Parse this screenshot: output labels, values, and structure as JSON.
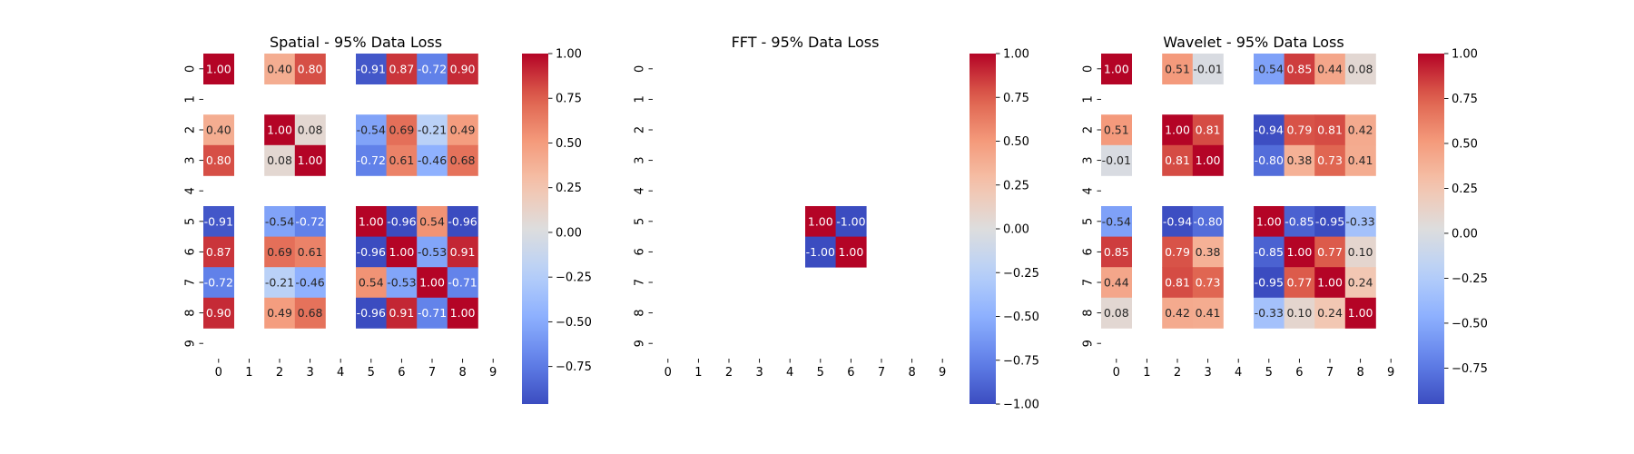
{
  "figure": {
    "background": "#ffffff"
  },
  "chart_data": [
    {
      "type": "heatmap",
      "title": "Spatial - 95% Data Loss",
      "xlabel": "",
      "ylabel": "",
      "x_ticks": [
        "0",
        "1",
        "2",
        "3",
        "4",
        "5",
        "6",
        "7",
        "8",
        "9"
      ],
      "y_ticks": [
        "0",
        "1",
        "2",
        "3",
        "4",
        "5",
        "6",
        "7",
        "8",
        "9"
      ],
      "colormap": "coolwarm",
      "vmin": -0.96,
      "vmax": 1.0,
      "colorbar_ticks": [
        "1.00",
        "0.75",
        "0.50",
        "0.25",
        "0.00",
        "−0.25",
        "−0.50",
        "−0.75"
      ],
      "matrix": [
        [
          1.0,
          null,
          0.4,
          0.8,
          null,
          -0.91,
          0.87,
          -0.72,
          0.9,
          null
        ],
        [
          null,
          null,
          null,
          null,
          null,
          null,
          null,
          null,
          null,
          null
        ],
        [
          0.4,
          null,
          1.0,
          0.08,
          null,
          -0.54,
          0.69,
          -0.21,
          0.49,
          null
        ],
        [
          0.8,
          null,
          0.08,
          1.0,
          null,
          -0.72,
          0.61,
          -0.46,
          0.68,
          null
        ],
        [
          null,
          null,
          null,
          null,
          null,
          null,
          null,
          null,
          null,
          null
        ],
        [
          -0.91,
          null,
          -0.54,
          -0.72,
          null,
          1.0,
          -0.96,
          0.54,
          -0.96,
          null
        ],
        [
          0.87,
          null,
          0.69,
          0.61,
          null,
          -0.96,
          1.0,
          -0.53,
          0.91,
          null
        ],
        [
          -0.72,
          null,
          -0.21,
          -0.46,
          null,
          0.54,
          -0.53,
          1.0,
          -0.71,
          null
        ],
        [
          0.9,
          null,
          0.49,
          0.68,
          null,
          -0.96,
          0.91,
          -0.71,
          1.0,
          null
        ],
        [
          null,
          null,
          null,
          null,
          null,
          null,
          null,
          null,
          null,
          null
        ]
      ]
    },
    {
      "type": "heatmap",
      "title": "FFT - 95% Data Loss",
      "xlabel": "",
      "ylabel": "",
      "x_ticks": [
        "0",
        "1",
        "2",
        "3",
        "4",
        "5",
        "6",
        "7",
        "8",
        "9"
      ],
      "y_ticks": [
        "0",
        "1",
        "2",
        "3",
        "4",
        "5",
        "6",
        "7",
        "8",
        "9"
      ],
      "colormap": "coolwarm",
      "vmin": -1.0,
      "vmax": 1.0,
      "colorbar_ticks": [
        "1.00",
        "0.75",
        "0.50",
        "0.25",
        "0.00",
        "−0.25",
        "−0.50",
        "−0.75",
        "−1.00"
      ],
      "matrix": [
        [
          null,
          null,
          null,
          null,
          null,
          null,
          null,
          null,
          null,
          null
        ],
        [
          null,
          null,
          null,
          null,
          null,
          null,
          null,
          null,
          null,
          null
        ],
        [
          null,
          null,
          null,
          null,
          null,
          null,
          null,
          null,
          null,
          null
        ],
        [
          null,
          null,
          null,
          null,
          null,
          null,
          null,
          null,
          null,
          null
        ],
        [
          null,
          null,
          null,
          null,
          null,
          null,
          null,
          null,
          null,
          null
        ],
        [
          null,
          null,
          null,
          null,
          null,
          1.0,
          -1.0,
          null,
          null,
          null
        ],
        [
          null,
          null,
          null,
          null,
          null,
          -1.0,
          1.0,
          null,
          null,
          null
        ],
        [
          null,
          null,
          null,
          null,
          null,
          null,
          null,
          null,
          null,
          null
        ],
        [
          null,
          null,
          null,
          null,
          null,
          null,
          null,
          null,
          null,
          null
        ],
        [
          null,
          null,
          null,
          null,
          null,
          null,
          null,
          null,
          null,
          null
        ]
      ]
    },
    {
      "type": "heatmap",
      "title": "Wavelet - 95% Data Loss",
      "xlabel": "",
      "ylabel": "",
      "x_ticks": [
        "0",
        "1",
        "2",
        "3",
        "4",
        "5",
        "6",
        "7",
        "8",
        "9"
      ],
      "y_ticks": [
        "0",
        "1",
        "2",
        "3",
        "4",
        "5",
        "6",
        "7",
        "8",
        "9"
      ],
      "colormap": "coolwarm",
      "vmin": -0.95,
      "vmax": 1.0,
      "colorbar_ticks": [
        "1.00",
        "0.75",
        "0.50",
        "0.25",
        "0.00",
        "−0.25",
        "−0.50",
        "−0.75"
      ],
      "matrix": [
        [
          1.0,
          null,
          0.51,
          -0.01,
          null,
          -0.54,
          0.85,
          0.44,
          0.08,
          null
        ],
        [
          null,
          null,
          null,
          null,
          null,
          null,
          null,
          null,
          null,
          null
        ],
        [
          0.51,
          null,
          1.0,
          0.81,
          null,
          -0.94,
          0.79,
          0.81,
          0.42,
          null
        ],
        [
          -0.01,
          null,
          0.81,
          1.0,
          null,
          -0.8,
          0.38,
          0.73,
          0.41,
          null
        ],
        [
          null,
          null,
          null,
          null,
          null,
          null,
          null,
          null,
          null,
          null
        ],
        [
          -0.54,
          null,
          -0.94,
          -0.8,
          null,
          1.0,
          -0.85,
          -0.95,
          -0.33,
          null
        ],
        [
          0.85,
          null,
          0.79,
          0.38,
          null,
          -0.85,
          1.0,
          0.77,
          0.1,
          null
        ],
        [
          0.44,
          null,
          0.81,
          0.73,
          null,
          -0.95,
          0.77,
          1.0,
          0.24,
          null
        ],
        [
          0.08,
          null,
          0.42,
          0.41,
          null,
          -0.33,
          0.1,
          0.24,
          1.0,
          null
        ],
        [
          null,
          null,
          null,
          null,
          null,
          null,
          null,
          null,
          null,
          null
        ]
      ]
    }
  ]
}
